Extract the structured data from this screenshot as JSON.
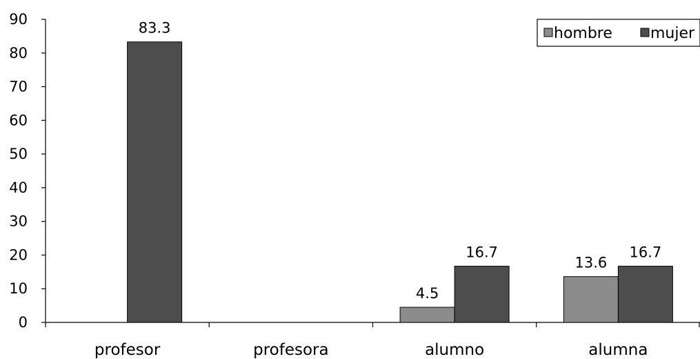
{
  "chart_data": {
    "type": "bar",
    "categories": [
      "profesor",
      "profesora",
      "alumno",
      "alumna"
    ],
    "series": [
      {
        "name": "hombre",
        "values": [
          null,
          null,
          4.5,
          13.6
        ],
        "labels": [
          "",
          "",
          "4.5",
          "13.6"
        ],
        "color": "#8c8c8c"
      },
      {
        "name": "mujer",
        "values": [
          83.3,
          null,
          16.7,
          16.7
        ],
        "labels": [
          "83.3",
          "",
          "16.7",
          "16.7"
        ],
        "color": "#4d4d4d"
      }
    ],
    "y_ticks": [
      0,
      10,
      20,
      30,
      40,
      50,
      60,
      70,
      80,
      90
    ],
    "ylim": [
      0,
      90
    ],
    "grid": false,
    "legend_position": "top-right"
  }
}
